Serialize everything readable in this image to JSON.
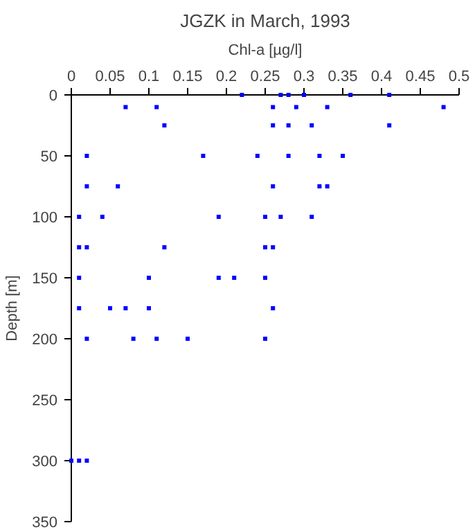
{
  "chart_data": {
    "type": "scatter",
    "title": "JGZK in March, 1993",
    "xlabel": "Chl-a [µg/l]",
    "ylabel": "Depth [m]",
    "x": [
      0.22,
      0.27,
      0.28,
      0.3,
      0.36,
      0.41,
      0.07,
      0.11,
      0.26,
      0.29,
      0.33,
      0.48,
      0.12,
      0.26,
      0.28,
      0.31,
      0.41,
      0.02,
      0.17,
      0.24,
      0.28,
      0.32,
      0.35,
      0.02,
      0.06,
      0.26,
      0.32,
      0.33,
      0.01,
      0.04,
      0.19,
      0.25,
      0.27,
      0.31,
      0.01,
      0.02,
      0.12,
      0.25,
      0.26,
      0.01,
      0.1,
      0.19,
      0.21,
      0.25,
      0.01,
      0.05,
      0.07,
      0.1,
      0.26,
      0.02,
      0.08,
      0.11,
      0.15,
      0.25,
      0.0,
      0.01,
      0.02
    ],
    "series": [
      {
        "color": "#0000ff",
        "values": [
          0,
          0,
          0,
          0,
          0,
          0,
          10,
          10,
          10,
          10,
          10,
          10,
          25,
          25,
          25,
          25,
          25,
          50,
          50,
          50,
          50,
          50,
          50,
          75,
          75,
          75,
          75,
          75,
          100,
          100,
          100,
          100,
          100,
          100,
          125,
          125,
          125,
          125,
          125,
          150,
          150,
          150,
          150,
          150,
          175,
          175,
          175,
          175,
          175,
          200,
          200,
          200,
          200,
          200,
          300,
          300,
          300
        ]
      }
    ],
    "xlim": [
      0,
      0.5
    ],
    "xticks": [
      0,
      0.05,
      0.1,
      0.15,
      0.2,
      0.25,
      0.3,
      0.35,
      0.4,
      0.45,
      0.5
    ],
    "ylim": [
      350,
      0
    ],
    "yticks": [
      0,
      50,
      100,
      150,
      200,
      250,
      300,
      350
    ],
    "marker": "square",
    "grid": false
  }
}
